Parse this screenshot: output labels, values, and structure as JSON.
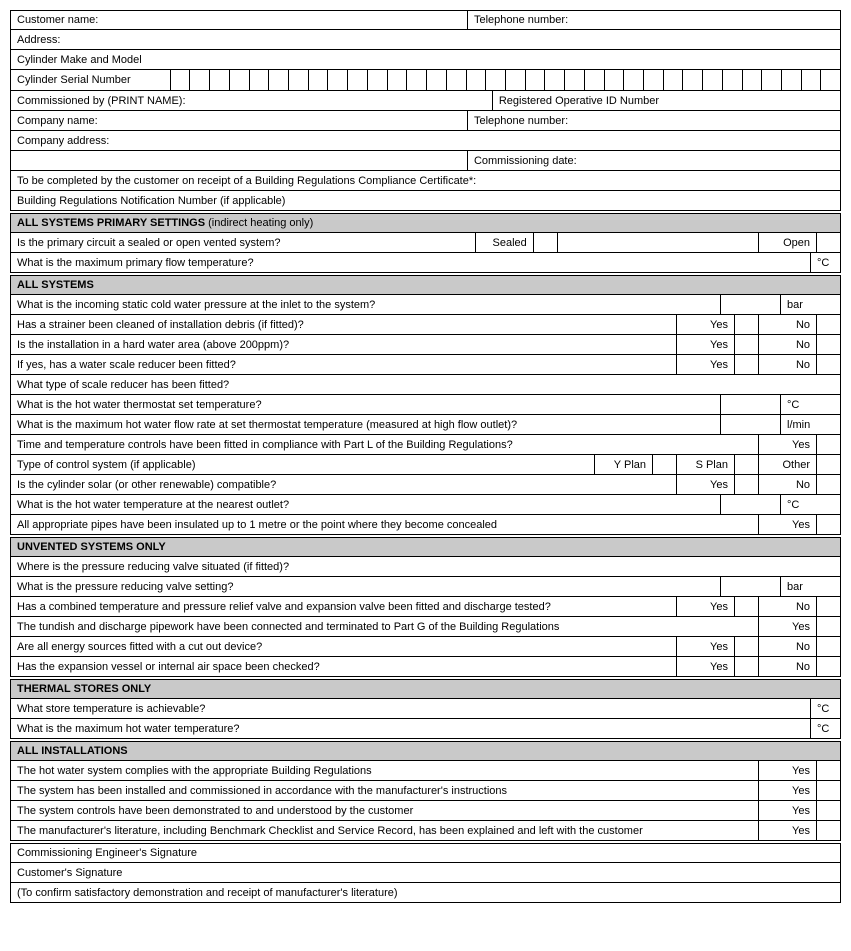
{
  "top": {
    "customer_name": "Customer name:",
    "telephone": "Telephone number:",
    "address": "Address:",
    "cyl_make": "Cylinder Make and Model",
    "cyl_serial": "Cylinder Serial Number",
    "commissioned_by": "Commissioned by (PRINT NAME):",
    "reg_op_id": "Registered Operative ID Number",
    "company_name": "Company name:",
    "company_tel": "Telephone number:",
    "company_addr": "Company address:",
    "commissioning_date": "Commissioning date:",
    "to_be_completed": "To be completed by the customer on receipt of a Building Regulations Compliance Certificate*:",
    "brn": "Building Regulations Notification Number (if applicable)"
  },
  "s1": {
    "title": "ALL SYSTEMS PRIMARY SETTINGS",
    "title_paren": " (indirect heating only)",
    "q1": "Is the primary circuit a sealed or open vented system?",
    "q1_a": "Sealed",
    "q1_b": "Open",
    "q2": "What is the maximum primary flow temperature?",
    "q2_unit": "°C"
  },
  "s2": {
    "title": "ALL SYSTEMS",
    "q1": "What is the incoming static cold water pressure at the inlet to the system?",
    "q1_unit": "bar",
    "q2": "Has a strainer been cleaned of installation debris (if fitted)?",
    "q3": "Is the installation in a hard water area (above 200ppm)?",
    "q4": "If yes, has a water scale reducer been fitted?",
    "q5": "What type of scale reducer has been fitted?",
    "q6": "What is the hot water thermostat set temperature?",
    "q6_unit": "°C",
    "q7": "What is the maximum hot water flow rate at set thermostat temperature (measured at high flow outlet)?",
    "q7_unit": "l/min",
    "q8": "Time and temperature controls have been fitted in compliance with Part L of the Building Regulations?",
    "q9": "Type of control system (if applicable)",
    "q9_a": "Y Plan",
    "q9_b": "S Plan",
    "q9_c": "Other",
    "q10": "Is the cylinder solar (or other renewable) compatible?",
    "q11": "What is the hot water temperature at the nearest outlet?",
    "q11_unit": "°C",
    "q12": "All appropriate pipes have been insulated up to 1 metre or the point where they become concealed"
  },
  "s3": {
    "title": "UNVENTED SYSTEMS ONLY",
    "q1": "Where is the pressure reducing valve situated (if fitted)?",
    "q2": "What is the pressure reducing valve setting?",
    "q2_unit": "bar",
    "q3": "Has a combined temperature and pressure relief valve and expansion valve been fitted and discharge tested?",
    "q4": "The tundish and discharge pipework have been connected and terminated to Part G of the Building Regulations",
    "q5": "Are all energy sources fitted with a cut out device?",
    "q6": "Has the expansion vessel or internal air space been checked?"
  },
  "s4": {
    "title": "THERMAL STORES ONLY",
    "q1": "What store temperature is achievable?",
    "q1_unit": "°C",
    "q2": "What is the maximum hot water temperature?",
    "q2_unit": "°C"
  },
  "s5": {
    "title": "ALL INSTALLATIONS",
    "q1": "The hot water system complies with the appropriate Building Regulations",
    "q2": "The system has been installed and commissioned in accordance with the manufacturer's instructions",
    "q3": "The system controls have been demonstrated to and understood by the customer",
    "q4": "The manufacturer's literature, including Benchmark Checklist and Service Record, has been explained and left with the customer"
  },
  "sig": {
    "engineer": "Commissioning Engineer's Signature",
    "customer": "Customer's Signature",
    "confirm": "(To confirm satisfactory demonstration and receipt of manufacturer's literature)"
  },
  "opts": {
    "yes": "Yes",
    "no": "No"
  },
  "serial_boxes": 35
}
